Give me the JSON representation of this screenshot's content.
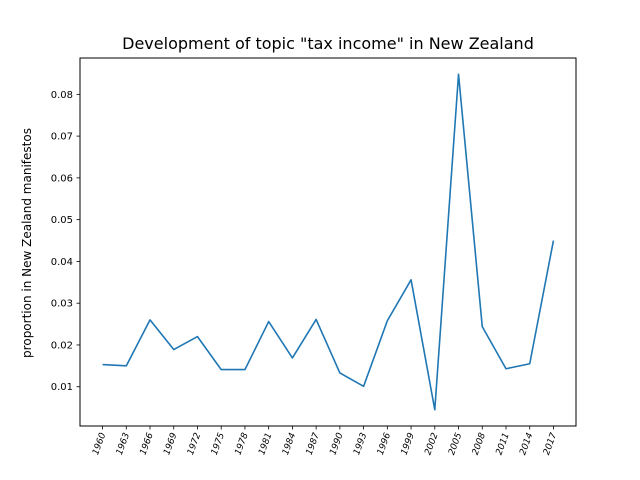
{
  "chart_data": {
    "type": "line",
    "title": "Development of topic \"tax income\" in New Zealand",
    "xlabel": "",
    "ylabel": "proportion in New Zealand manifestos",
    "categories": [
      "1960",
      "1963",
      "1966",
      "1969",
      "1972",
      "1975",
      "1978",
      "1981",
      "1984",
      "1987",
      "1990",
      "1993",
      "1996",
      "1999",
      "2002",
      "2005",
      "2008",
      "2011",
      "2014",
      "2017"
    ],
    "series": [
      {
        "values": [
          0.0153,
          0.015,
          0.026,
          0.0189,
          0.022,
          0.0141,
          0.0141,
          0.0256,
          0.0169,
          0.0261,
          0.0133,
          0.0101,
          0.0258,
          0.0356,
          0.0045,
          0.0848,
          0.0244,
          0.0143,
          0.0155,
          0.045
        ],
        "color": "#1f77b4"
      }
    ],
    "yticks": [
      "0.01",
      "0.02",
      "0.03",
      "0.04",
      "0.05",
      "0.06",
      "0.07",
      "0.08"
    ],
    "ylim": [
      0.0006,
      0.0887
    ],
    "grid": false
  }
}
